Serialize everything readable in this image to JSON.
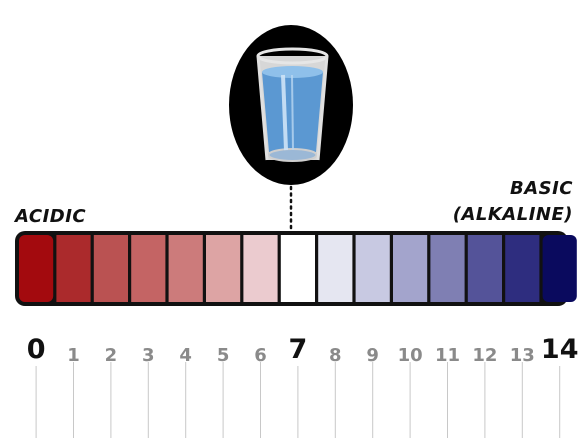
{
  "labels": {
    "acidic": "ACIDIC",
    "basic_line1": "BASIC",
    "basic_line2": "(ALKALINE)"
  },
  "scale": {
    "values": [
      "0",
      "1",
      "2",
      "3",
      "4",
      "5",
      "6",
      "7",
      "8",
      "9",
      "10",
      "11",
      "12",
      "13",
      "14"
    ],
    "emphasized": [
      "0",
      "7",
      "14"
    ],
    "neutral_index": 7,
    "colors": [
      "#a30a0e",
      "#ab2a2c",
      "#ba5252",
      "#c46464",
      "#cc7b7b",
      "#dda4a4",
      "#ebcbcf",
      "#ffffff",
      "#e5e6f1",
      "#c8c9e2",
      "#a3a4cc",
      "#7f7fb3",
      "#545399",
      "#2e2d7f",
      "#0a0a5e"
    ]
  },
  "icon": {
    "name": "glass-of-water-icon"
  }
}
